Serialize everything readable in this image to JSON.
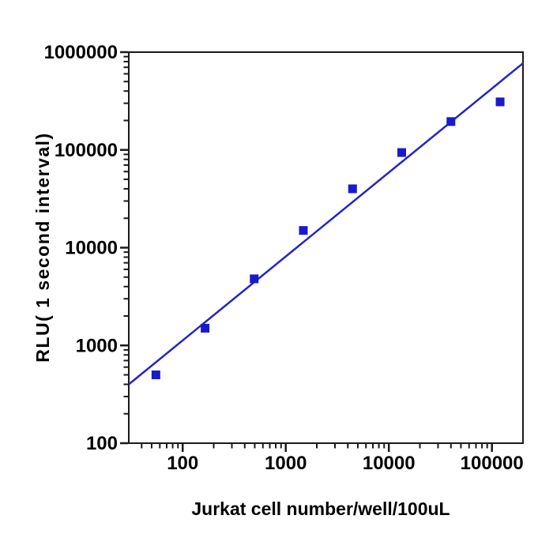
{
  "chart_data": {
    "type": "scatter",
    "x_scale": "log",
    "y_scale": "log",
    "xlabel": "Jurkat cell number/well/100uL",
    "ylabel": "RLU( 1 second interval)",
    "xlim": [
      30,
      200000
    ],
    "ylim": [
      100,
      1000000
    ],
    "x_tick_values": [
      100,
      1000,
      10000,
      100000
    ],
    "x_tick_labels": [
      "100",
      "1000",
      "10000",
      "100000"
    ],
    "y_tick_values": [
      100,
      1000,
      10000,
      100000,
      1000000
    ],
    "y_tick_labels": [
      "100",
      "1000",
      "10000",
      "100000",
      "1000000"
    ],
    "grid": false,
    "series": [
      {
        "marker": "square",
        "color": "#1a1acd",
        "x": [
          55,
          165,
          494,
          1481,
          4444,
          13333,
          40000,
          120000
        ],
        "y": [
          500,
          1500,
          4800,
          15000,
          40000,
          94000,
          195000,
          310000
        ]
      }
    ],
    "fit_line": {
      "color": "#2424c4",
      "x": [
        30,
        200000
      ],
      "y": [
        400,
        770000
      ]
    },
    "axis_color": "#1a1a1a",
    "text_color": "#000000",
    "background": "#ffffff"
  }
}
